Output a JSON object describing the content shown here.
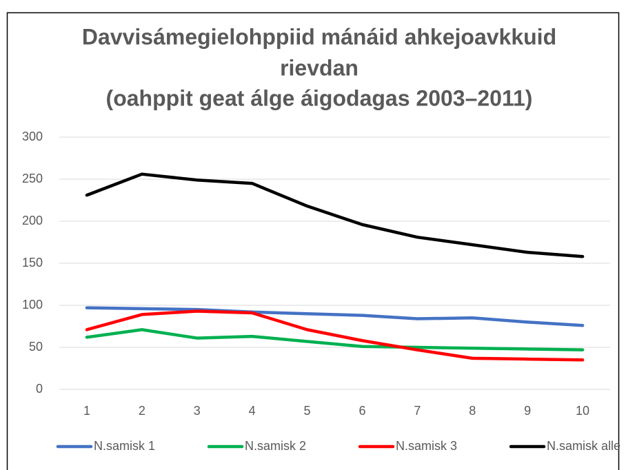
{
  "chart_data": {
    "type": "line",
    "title": [
      "Davvisámegielohppiid mánáid ahkejoavkkuid",
      "rievdan",
      "(oahppit geat álge áigodagas 2003–2011)"
    ],
    "categories": [
      1,
      2,
      3,
      4,
      5,
      6,
      7,
      8,
      9,
      10
    ],
    "series": [
      {
        "name": "N.samisk 1",
        "color": "#4472c4",
        "values": [
          97,
          96,
          95,
          92,
          90,
          88,
          84,
          85,
          80,
          76
        ]
      },
      {
        "name": "N.samisk 2",
        "color": "#00b050",
        "values": [
          62,
          71,
          61,
          63,
          57,
          51,
          50,
          49,
          48,
          47
        ]
      },
      {
        "name": "N.samisk 3",
        "color": "#ff0000",
        "values": [
          71,
          89,
          93,
          91,
          71,
          58,
          47,
          37,
          36,
          35
        ]
      },
      {
        "name": "N.samisk alle",
        "color": "#000000",
        "values": [
          231,
          256,
          249,
          245,
          218,
          196,
          181,
          172,
          163,
          158
        ]
      }
    ],
    "ylim": [
      0,
      300
    ],
    "yticks": [
      0,
      50,
      100,
      150,
      200,
      250,
      300
    ],
    "grid": true,
    "legend": "bottom"
  }
}
